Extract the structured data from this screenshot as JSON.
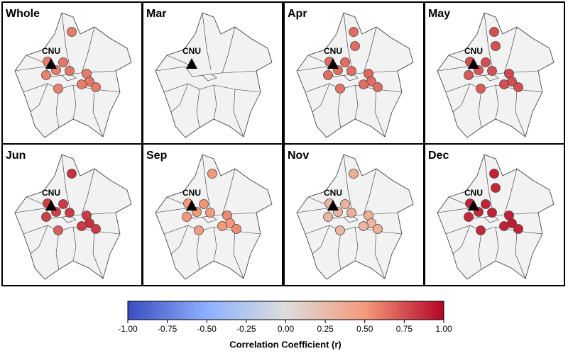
{
  "chart_data": {
    "type": "map",
    "colorbar_label": "Correlation Coefficient (r)",
    "clim": [
      -1,
      1
    ],
    "colorbar_ticks": [
      {
        "value": -1,
        "label": "-1.00"
      },
      {
        "value": -0.75,
        "label": "-0.75"
      },
      {
        "value": -0.5,
        "label": "-0.50"
      },
      {
        "value": -0.25,
        "label": "-0.25"
      },
      {
        "value": 0,
        "label": "0.00"
      },
      {
        "value": 0.25,
        "label": "0.25"
      },
      {
        "value": 0.5,
        "label": "0.50"
      },
      {
        "value": 0.75,
        "label": "0.75"
      },
      {
        "value": 1,
        "label": "1.00"
      }
    ],
    "panels": [
      {
        "title": "Whole",
        "site": "CNU",
        "values": [
          0.6,
          null,
          0.6,
          0.62,
          0.6,
          0.62,
          0.58,
          0.6,
          0.62,
          0.6,
          0.6,
          0.58
        ]
      },
      {
        "title": "Mar",
        "site": "CNU",
        "values": [
          null,
          null,
          null,
          null,
          null,
          null,
          null,
          null,
          null,
          null,
          null,
          null
        ]
      },
      {
        "title": "Apr",
        "site": "CNU",
        "values": [
          0.65,
          0.65,
          0.65,
          0.65,
          0.65,
          0.65,
          0.65,
          0.67,
          0.65,
          0.65,
          0.65,
          0.63
        ]
      },
      {
        "title": "May",
        "site": "CNU",
        "values": [
          0.75,
          0.75,
          0.75,
          0.75,
          0.73,
          0.75,
          0.72,
          0.77,
          0.75,
          0.75,
          0.75,
          0.7
        ]
      },
      {
        "title": "Jun",
        "site": "CNU",
        "values": [
          0.85,
          null,
          0.8,
          0.82,
          0.8,
          0.82,
          0.8,
          0.82,
          0.85,
          0.82,
          0.82,
          0.7
        ]
      },
      {
        "title": "Sep",
        "site": "CNU",
        "values": [
          0.5,
          null,
          0.5,
          0.52,
          0.5,
          0.5,
          0.5,
          0.55,
          0.5,
          0.5,
          0.55,
          0.48
        ]
      },
      {
        "title": "Nov",
        "site": "CNU",
        "values": [
          0.35,
          null,
          0.3,
          0.32,
          0.3,
          0.35,
          0.3,
          0.35,
          0.3,
          0.3,
          0.35,
          0.3
        ]
      },
      {
        "title": "Dec",
        "site": "CNU",
        "values": [
          0.9,
          0.88,
          0.9,
          0.9,
          0.88,
          0.9,
          0.88,
          0.9,
          0.92,
          0.9,
          0.9,
          0.88
        ]
      }
    ]
  }
}
